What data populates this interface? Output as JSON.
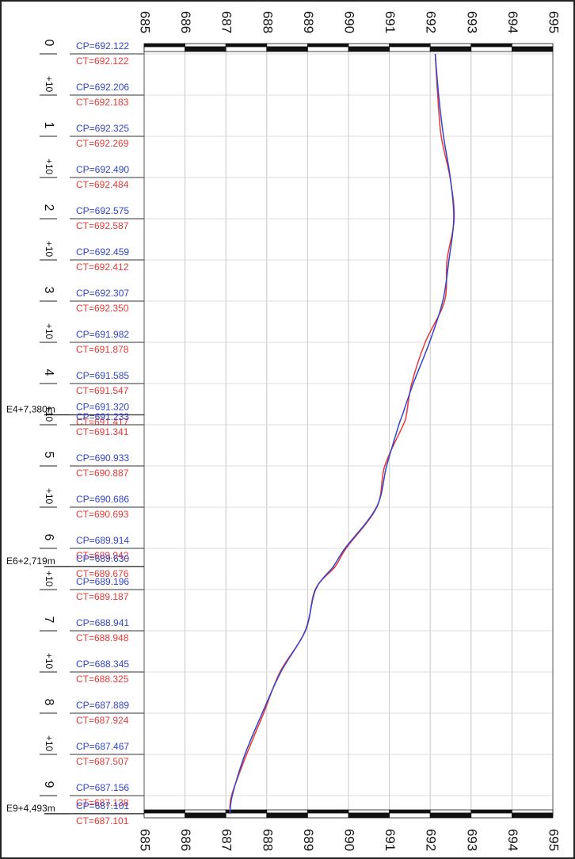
{
  "chart_data": {
    "type": "line",
    "orientation": "vertical-profile",
    "value_axis": {
      "min": 685,
      "max": 695,
      "ticks": [
        "685",
        "686",
        "687",
        "688",
        "689",
        "690",
        "691",
        "692",
        "693",
        "694",
        "695"
      ]
    },
    "station_ticks": [
      {
        "label": "0",
        "s": 0
      },
      {
        "label": "+10",
        "s": 0.5
      },
      {
        "label": "1",
        "s": 1
      },
      {
        "label": "+10",
        "s": 1.5
      },
      {
        "label": "2",
        "s": 2
      },
      {
        "label": "+10",
        "s": 2.5
      },
      {
        "label": "3",
        "s": 3
      },
      {
        "label": "+10",
        "s": 3.5
      },
      {
        "label": "4",
        "s": 4
      },
      {
        "label": "+10",
        "s": 4.5
      },
      {
        "label": "5",
        "s": 5
      },
      {
        "label": "+10",
        "s": 5.5
      },
      {
        "label": "6",
        "s": 6
      },
      {
        "label": "+10",
        "s": 6.5
      },
      {
        "label": "7",
        "s": 7
      },
      {
        "label": "+10",
        "s": 7.5
      },
      {
        "label": "8",
        "s": 8
      },
      {
        "label": "+10",
        "s": 8.5
      },
      {
        "label": "9",
        "s": 9
      }
    ],
    "markers": [
      {
        "label": "E4+7,380m",
        "s": 4.38
      },
      {
        "label": "E6+2,719m",
        "s": 6.22
      },
      {
        "label": "E9+4,493m",
        "s": 9.22
      }
    ],
    "stations": [
      {
        "s": 0,
        "cp": "692.122",
        "ct": "692.122"
      },
      {
        "s": 0.5,
        "cp": "692.206",
        "ct": "692.183"
      },
      {
        "s": 1,
        "cp": "692.325",
        "ct": "692.269"
      },
      {
        "s": 1.5,
        "cp": "692.490",
        "ct": "692.484"
      },
      {
        "s": 2,
        "cp": "692.575",
        "ct": "692.587"
      },
      {
        "s": 2.5,
        "cp": "692.459",
        "ct": "692.412"
      },
      {
        "s": 3,
        "cp": "692.307",
        "ct": "692.350"
      },
      {
        "s": 3.5,
        "cp": "691.982",
        "ct": "691.878"
      },
      {
        "s": 4,
        "cp": "691.585",
        "ct": "691.547"
      },
      {
        "s": 4.38,
        "cp": "691.320",
        "ct": "691.417"
      },
      {
        "s": 4.5,
        "cp": "691.233",
        "ct": "691.341"
      },
      {
        "s": 5,
        "cp": "690.933",
        "ct": "690.887"
      },
      {
        "s": 5.5,
        "cp": "690.686",
        "ct": "690.693"
      },
      {
        "s": 6,
        "cp": "689.914",
        "ct": "689.942"
      },
      {
        "s": 6.22,
        "cp": "689.630",
        "ct": "689.676"
      },
      {
        "s": 6.5,
        "cp": "689.196",
        "ct": "689.187"
      },
      {
        "s": 7,
        "cp": "688.941",
        "ct": "688.948"
      },
      {
        "s": 7.5,
        "cp": "688.345",
        "ct": "688.325"
      },
      {
        "s": 8,
        "cp": "687.889",
        "ct": "687.924"
      },
      {
        "s": 8.5,
        "cp": "687.467",
        "ct": "687.507"
      },
      {
        "s": 9,
        "cp": "687.156",
        "ct": "687.138"
      },
      {
        "s": 9.22,
        "cp": "687.101",
        "ct": "687.101"
      }
    ],
    "series": [
      {
        "prefix": "CP=",
        "color": "#3344cc"
      },
      {
        "prefix": "CT=",
        "color": "#e83838"
      }
    ],
    "grid": true
  }
}
